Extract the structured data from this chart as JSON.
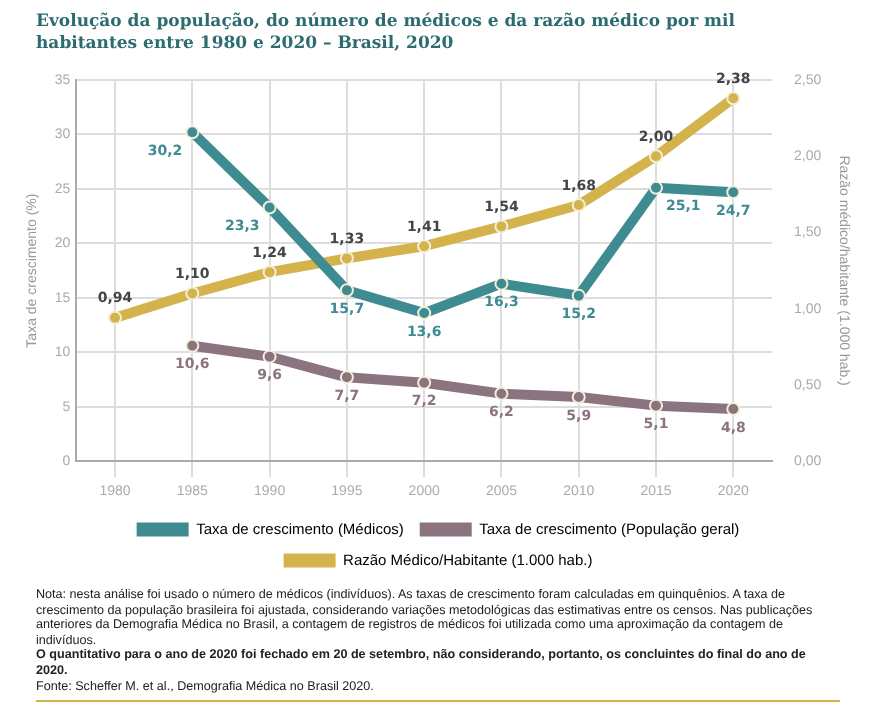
{
  "chart_data": {
    "type": "line",
    "title": "Evolução da população, do número de médicos e da razão médico por mil habitantes entre 1980 e 2020 – Brasil, 2020",
    "categories": [
      "1980",
      "1985",
      "1990",
      "1995",
      "2000",
      "2005",
      "2010",
      "2015",
      "2020"
    ],
    "ylabel": "Taxa de crescimento (%)",
    "y2label": "Razão médico/habitante (1.000 hab.)",
    "ylim": [
      0,
      35
    ],
    "yticks": [
      0,
      5,
      10,
      15,
      20,
      25,
      30,
      35
    ],
    "y2lim": [
      0,
      2.5
    ],
    "y2ticks": [
      {
        "value": 0,
        "label": "0,00"
      },
      {
        "value": 0.5,
        "label": "0,50"
      },
      {
        "value": 1,
        "label": "1,00"
      },
      {
        "value": 1.5,
        "label": "1,50"
      },
      {
        "value": 2,
        "label": "2,00"
      },
      {
        "value": 2.5,
        "label": "2,50"
      }
    ],
    "series": [
      {
        "name": "Taxa de crescimento (Médicos)",
        "color": "#3e8b92",
        "values": [
          null,
          30.2,
          23.3,
          15.7,
          13.6,
          16.3,
          15.2,
          25.1,
          24.7
        ],
        "value_labels": [
          null,
          "30,2",
          "23,3",
          "15,7",
          "13,6",
          "16,3",
          "15,2",
          "25,1",
          "24,7"
        ]
      },
      {
        "name": "Taxa de crescimento (População geral)",
        "color": "#8c7380",
        "values": [
          null,
          10.6,
          9.6,
          7.7,
          7.2,
          6.2,
          5.9,
          5.1,
          4.8
        ],
        "value_labels": [
          null,
          "10,6",
          "9,6",
          "7,7",
          "7,2",
          "6,2",
          "5,9",
          "5,1",
          "4,8"
        ]
      },
      {
        "name": "Razão Médico/Habitante (1.000 hab.)",
        "color": "#d4b24c",
        "axis": "y2",
        "values": [
          0.94,
          1.1,
          1.24,
          1.33,
          1.41,
          1.54,
          1.68,
          2.0,
          2.38
        ],
        "value_labels": [
          "0,94",
          "1,10",
          "1,24",
          "1,33",
          "1,41",
          "1,54",
          "1,68",
          "2,00",
          "2,38"
        ]
      }
    ],
    "grid": true,
    "legend": "bottom",
    "marker": "circle",
    "line_style": "solid",
    "annotations": [
      "Nota: nesta análise foi usado o número de médicos (indivíduos). As taxas de crescimento foram calculadas em quinquênios. A taxa de crescimento da população brasileira foi ajustada, considerando variações metodológicas das estimativas entre os censos. Nas publicações anteriores da Demografia Médica no Brasil, a contagem de registros de médicos foi utilizada como uma aproximação da contagem de indivíduos.",
      "O quantitativo para o ano de 2020 foi fechado em 20 de setembro, não considerando, portanto, os concluintes do final do ano de 2020.",
      "Fonte: Scheffer M. et al., Demografia Médica no Brasil 2020."
    ]
  }
}
